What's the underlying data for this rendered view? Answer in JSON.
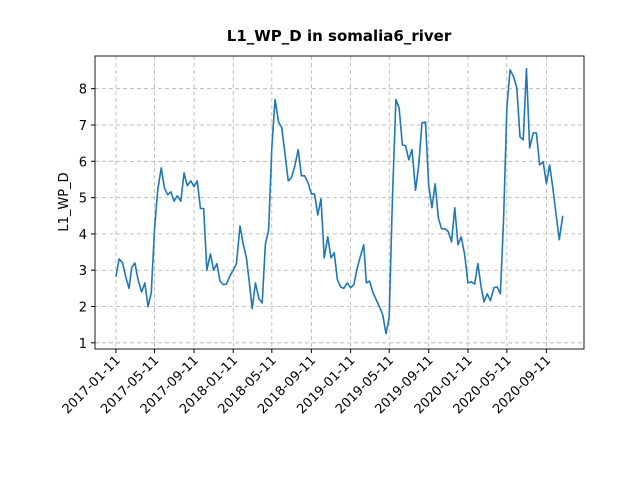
{
  "chart_data": {
    "type": "line",
    "title": "L1_WP_D in somalia6_river",
    "y_label": "L1_WP_D",
    "color": "#1f77b4",
    "grid": true,
    "x": [
      "2017-01-11",
      "2017-01-21",
      "2017-02-01",
      "2017-02-11",
      "2017-02-21",
      "2017-03-01",
      "2017-03-11",
      "2017-03-21",
      "2017-04-01",
      "2017-04-11",
      "2017-04-21",
      "2017-05-01",
      "2017-05-11",
      "2017-05-21",
      "2017-06-01",
      "2017-06-11",
      "2017-06-21",
      "2017-07-01",
      "2017-07-11",
      "2017-07-21",
      "2017-08-01",
      "2017-08-11",
      "2017-08-21",
      "2017-09-01",
      "2017-09-11",
      "2017-09-21",
      "2017-10-01",
      "2017-10-11",
      "2017-10-21",
      "2017-11-01",
      "2017-11-11",
      "2017-11-21",
      "2017-12-01",
      "2017-12-11",
      "2017-12-21",
      "2018-01-01",
      "2018-01-11",
      "2018-01-21",
      "2018-02-01",
      "2018-02-11",
      "2018-02-21",
      "2018-03-01",
      "2018-03-11",
      "2018-03-21",
      "2018-04-01",
      "2018-04-11",
      "2018-04-21",
      "2018-05-01",
      "2018-05-11",
      "2018-05-21",
      "2018-06-01",
      "2018-06-11",
      "2018-06-21",
      "2018-07-01",
      "2018-07-11",
      "2018-07-21",
      "2018-08-01",
      "2018-08-11",
      "2018-08-21",
      "2018-09-01",
      "2018-09-11",
      "2018-09-21",
      "2018-10-01",
      "2018-10-11",
      "2018-10-21",
      "2018-11-01",
      "2018-11-11",
      "2018-11-21",
      "2018-12-01",
      "2018-12-11",
      "2018-12-21",
      "2019-01-01",
      "2019-01-11",
      "2019-01-21",
      "2019-02-01",
      "2019-02-11",
      "2019-02-21",
      "2019-03-01",
      "2019-03-11",
      "2019-03-21",
      "2019-04-01",
      "2019-04-11",
      "2019-04-21",
      "2019-05-01",
      "2019-05-11",
      "2019-05-21",
      "2019-06-01",
      "2019-06-11",
      "2019-06-21",
      "2019-07-01",
      "2019-07-11",
      "2019-07-21",
      "2019-08-01",
      "2019-08-11",
      "2019-08-21",
      "2019-09-01",
      "2019-09-11",
      "2019-09-21",
      "2019-10-01",
      "2019-10-11",
      "2019-10-21",
      "2019-11-01",
      "2019-11-11",
      "2019-11-21",
      "2019-12-01",
      "2019-12-11",
      "2019-12-21",
      "2020-01-01",
      "2020-01-11",
      "2020-01-21",
      "2020-02-01",
      "2020-02-11",
      "2020-02-21",
      "2020-03-01",
      "2020-03-11",
      "2020-03-21",
      "2020-04-01",
      "2020-04-11",
      "2020-04-21",
      "2020-05-01",
      "2020-05-11",
      "2020-05-21",
      "2020-06-01",
      "2020-06-11",
      "2020-06-21",
      "2020-07-01",
      "2020-07-11",
      "2020-07-21",
      "2020-08-01",
      "2020-08-11",
      "2020-08-21",
      "2020-09-01",
      "2020-09-11",
      "2020-09-21",
      "2020-10-01",
      "2020-10-11",
      "2020-10-21",
      "2020-11-01"
    ],
    "values": [
      2.82,
      3.31,
      3.2,
      2.8,
      2.5,
      3.07,
      3.2,
      2.74,
      2.4,
      2.65,
      2.0,
      2.38,
      4.1,
      5.2,
      5.82,
      5.27,
      5.08,
      5.16,
      4.9,
      5.05,
      4.9,
      5.68,
      5.33,
      5.46,
      5.3,
      5.46,
      4.7,
      4.7,
      3.0,
      3.45,
      3.0,
      3.18,
      2.7,
      2.6,
      2.62,
      2.85,
      3.0,
      3.18,
      4.22,
      3.72,
      3.34,
      2.74,
      1.94,
      2.65,
      2.21,
      2.1,
      3.72,
      4.1,
      6.37,
      7.7,
      7.08,
      6.92,
      6.2,
      5.46,
      5.55,
      5.85,
      6.32,
      5.6,
      5.6,
      5.4,
      5.1,
      5.1,
      4.52,
      4.97,
      3.34,
      3.92,
      3.34,
      3.48,
      2.74,
      2.54,
      2.5,
      2.65,
      2.52,
      2.6,
      3.07,
      3.4,
      3.7,
      2.65,
      2.7,
      2.4,
      2.18,
      1.99,
      1.77,
      1.25,
      1.69,
      4.94,
      7.7,
      7.47,
      6.45,
      6.43,
      6.04,
      6.32,
      5.2,
      5.9,
      7.06,
      7.08,
      5.33,
      4.72,
      5.38,
      4.44,
      4.14,
      4.14,
      4.06,
      3.78,
      4.72,
      3.7,
      3.92,
      3.42,
      2.65,
      2.68,
      2.62,
      3.18,
      2.54,
      2.13,
      2.35,
      2.16,
      2.52,
      2.54,
      2.35,
      4.44,
      7.47,
      8.52,
      8.33,
      8.02,
      6.67,
      6.59,
      8.55,
      6.37,
      6.78,
      6.78,
      5.9,
      5.99,
      5.38,
      5.9,
      5.27,
      4.55,
      3.84,
      4.5
    ],
    "xlim": [
      "2016-11-07",
      "2021-01-06"
    ],
    "xticks": [
      "2017-01-11",
      "2017-05-11",
      "2017-09-11",
      "2018-01-11",
      "2018-05-11",
      "2018-09-11",
      "2019-01-11",
      "2019-05-11",
      "2019-09-11",
      "2020-01-11",
      "2020-05-11",
      "2020-09-11"
    ],
    "ylim": [
      0.83,
      8.9
    ],
    "yticks": [
      1,
      2,
      3,
      4,
      5,
      6,
      7,
      8
    ]
  }
}
